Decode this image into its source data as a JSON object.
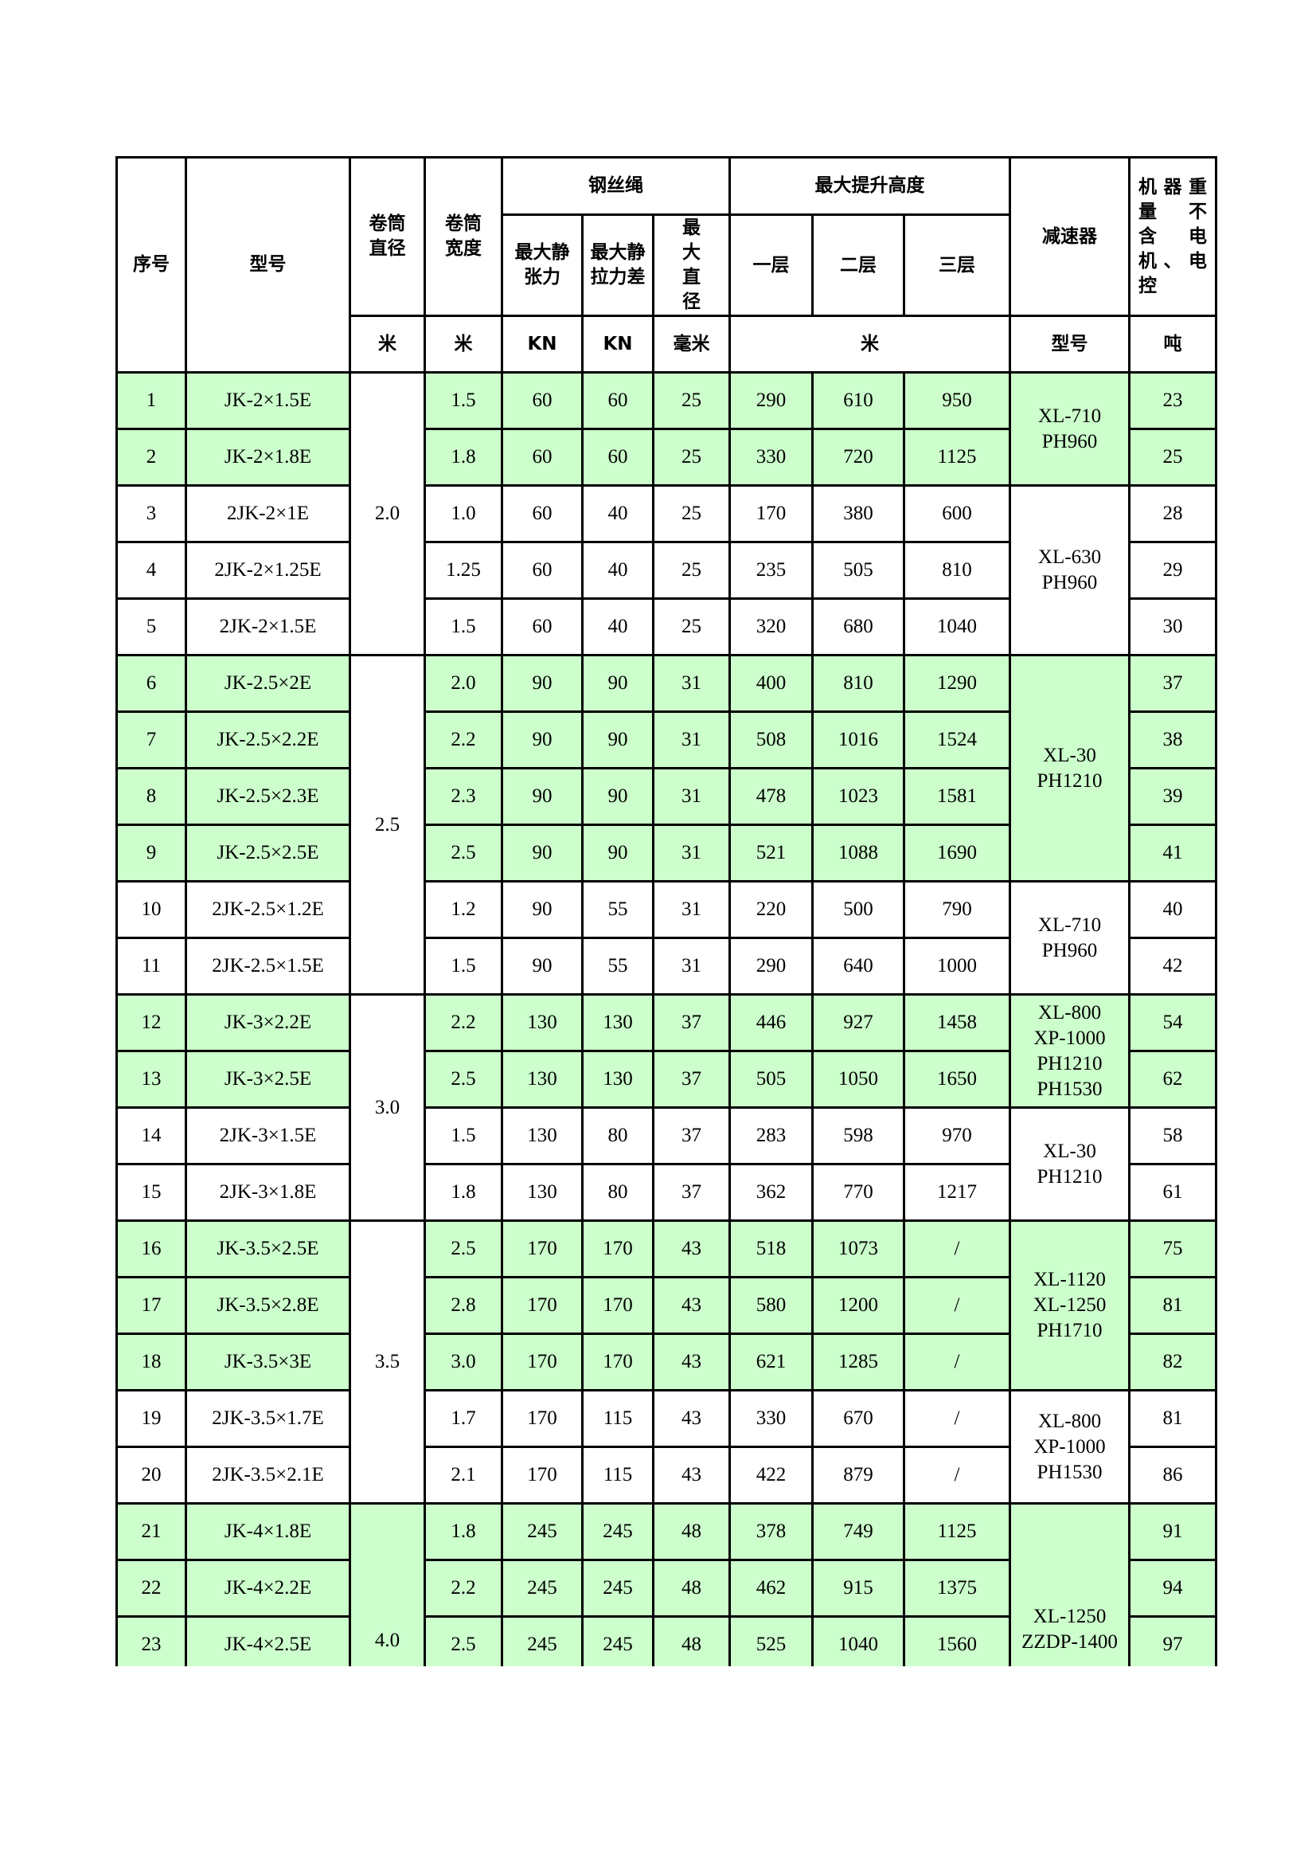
{
  "header": {
    "seq": "序号",
    "model": "型号",
    "drum_diameter": "卷筒直径",
    "drum_width": "卷筒宽度",
    "rope": "钢丝绳",
    "max_static_tension": "最大静张力",
    "max_static_tension_diff": "最大静拉力差",
    "max_diameter": "最大直径",
    "max_lift_height": "最大提升高度",
    "layer1": "一层",
    "layer2": "二层",
    "layer3": "三层",
    "reducer": "减速器",
    "weight": "机器重量　不含电机、电控"
  },
  "units": {
    "drum_diameter": "米",
    "drum_width": "米",
    "tension": "KN",
    "tension_diff": "KN",
    "diameter": "毫米",
    "lift": "米",
    "reducer": "型号",
    "weight": "吨"
  },
  "colors": {
    "green": "#ccffcc",
    "white": "#ffffff"
  },
  "rows": [
    {
      "no": "1",
      "model": "JK-2×1.5E",
      "width": "1.5",
      "tension": "60",
      "diff": "60",
      "dia": "25",
      "l1": "290",
      "l2": "610",
      "l3": "950",
      "weight": "23",
      "green": true
    },
    {
      "no": "2",
      "model": "JK-2×1.8E",
      "width": "1.8",
      "tension": "60",
      "diff": "60",
      "dia": "25",
      "l1": "330",
      "l2": "720",
      "l3": "1125",
      "weight": "25",
      "green": true
    },
    {
      "no": "3",
      "model": "2JK-2×1E",
      "width": "1.0",
      "tension": "60",
      "diff": "40",
      "dia": "25",
      "l1": "170",
      "l2": "380",
      "l3": "600",
      "weight": "28",
      "green": false
    },
    {
      "no": "4",
      "model": "2JK-2×1.25E",
      "width": "1.25",
      "tension": "60",
      "diff": "40",
      "dia": "25",
      "l1": "235",
      "l2": "505",
      "l3": "810",
      "weight": "29",
      "green": false
    },
    {
      "no": "5",
      "model": "2JK-2×1.5E",
      "width": "1.5",
      "tension": "60",
      "diff": "40",
      "dia": "25",
      "l1": "320",
      "l2": "680",
      "l3": "1040",
      "weight": "30",
      "green": false
    },
    {
      "no": "6",
      "model": "JK-2.5×2E",
      "width": "2.0",
      "tension": "90",
      "diff": "90",
      "dia": "31",
      "l1": "400",
      "l2": "810",
      "l3": "1290",
      "weight": "37",
      "green": true
    },
    {
      "no": "7",
      "model": "JK-2.5×2.2E",
      "width": "2.2",
      "tension": "90",
      "diff": "90",
      "dia": "31",
      "l1": "508",
      "l2": "1016",
      "l3": "1524",
      "weight": "38",
      "green": true
    },
    {
      "no": "8",
      "model": "JK-2.5×2.3E",
      "width": "2.3",
      "tension": "90",
      "diff": "90",
      "dia": "31",
      "l1": "478",
      "l2": "1023",
      "l3": "1581",
      "weight": "39",
      "green": true
    },
    {
      "no": "9",
      "model": "JK-2.5×2.5E",
      "width": "2.5",
      "tension": "90",
      "diff": "90",
      "dia": "31",
      "l1": "521",
      "l2": "1088",
      "l3": "1690",
      "weight": "41",
      "green": true
    },
    {
      "no": "10",
      "model": "2JK-2.5×1.2E",
      "width": "1.2",
      "tension": "90",
      "diff": "55",
      "dia": "31",
      "l1": "220",
      "l2": "500",
      "l3": "790",
      "weight": "40",
      "green": false
    },
    {
      "no": "11",
      "model": "2JK-2.5×1.5E",
      "width": "1.5",
      "tension": "90",
      "diff": "55",
      "dia": "31",
      "l1": "290",
      "l2": "640",
      "l3": "1000",
      "weight": "42",
      "green": false
    },
    {
      "no": "12",
      "model": "JK-3×2.2E",
      "width": "2.2",
      "tension": "130",
      "diff": "130",
      "dia": "37",
      "l1": "446",
      "l2": "927",
      "l3": "1458",
      "weight": "54",
      "green": true
    },
    {
      "no": "13",
      "model": "JK-3×2.5E",
      "width": "2.5",
      "tension": "130",
      "diff": "130",
      "dia": "37",
      "l1": "505",
      "l2": "1050",
      "l3": "1650",
      "weight": "62",
      "green": true
    },
    {
      "no": "14",
      "model": "2JK-3×1.5E",
      "width": "1.5",
      "tension": "130",
      "diff": "80",
      "dia": "37",
      "l1": "283",
      "l2": "598",
      "l3": "970",
      "weight": "58",
      "green": false
    },
    {
      "no": "15",
      "model": "2JK-3×1.8E",
      "width": "1.8",
      "tension": "130",
      "diff": "80",
      "dia": "37",
      "l1": "362",
      "l2": "770",
      "l3": "1217",
      "weight": "61",
      "green": false
    },
    {
      "no": "16",
      "model": "JK-3.5×2.5E",
      "width": "2.5",
      "tension": "170",
      "diff": "170",
      "dia": "43",
      "l1": "518",
      "l2": "1073",
      "l3": "/",
      "weight": "75",
      "green": true
    },
    {
      "no": "17",
      "model": "JK-3.5×2.8E",
      "width": "2.8",
      "tension": "170",
      "diff": "170",
      "dia": "43",
      "l1": "580",
      "l2": "1200",
      "l3": "/",
      "weight": "81",
      "green": true
    },
    {
      "no": "18",
      "model": "JK-3.5×3E",
      "width": "3.0",
      "tension": "170",
      "diff": "170",
      "dia": "43",
      "l1": "621",
      "l2": "1285",
      "l3": "/",
      "weight": "82",
      "green": true
    },
    {
      "no": "19",
      "model": "2JK-3.5×1.7E",
      "width": "1.7",
      "tension": "170",
      "diff": "115",
      "dia": "43",
      "l1": "330",
      "l2": "670",
      "l3": "/",
      "weight": "81",
      "green": false
    },
    {
      "no": "20",
      "model": "2JK-3.5×2.1E",
      "width": "2.1",
      "tension": "170",
      "diff": "115",
      "dia": "43",
      "l1": "422",
      "l2": "879",
      "l3": "/",
      "weight": "86",
      "green": false
    },
    {
      "no": "21",
      "model": "JK-4×1.8E",
      "width": "1.8",
      "tension": "245",
      "diff": "245",
      "dia": "48",
      "l1": "378",
      "l2": "749",
      "l3": "1125",
      "weight": "91",
      "green": true
    },
    {
      "no": "22",
      "model": "JK-4×2.2E",
      "width": "2.2",
      "tension": "245",
      "diff": "245",
      "dia": "48",
      "l1": "462",
      "l2": "915",
      "l3": "1375",
      "weight": "94",
      "green": true
    },
    {
      "no": "23",
      "model": "JK-4×2.5E",
      "width": "2.5",
      "tension": "245",
      "diff": "245",
      "dia": "48",
      "l1": "525",
      "l2": "1040",
      "l3": "1560",
      "weight": "97",
      "green": true
    }
  ],
  "diameter_groups": [
    {
      "value": "2.0",
      "start": 0,
      "span": 5,
      "green": false
    },
    {
      "value": "2.5",
      "start": 5,
      "span": 6,
      "green": false
    },
    {
      "value": "3.0",
      "start": 11,
      "span": 4,
      "green": false
    },
    {
      "value": "3.5",
      "start": 15,
      "span": 5,
      "green": false
    },
    {
      "value": "4.0",
      "start": 20,
      "span": 3,
      "green": true,
      "cut": true
    }
  ],
  "reducer_groups": [
    {
      "value": "XL-710\nPH960",
      "start": 0,
      "span": 2,
      "green": true
    },
    {
      "value": "XL-630\nPH960",
      "start": 2,
      "span": 3,
      "green": false
    },
    {
      "value": "XL-30\nPH1210",
      "start": 5,
      "span": 4,
      "green": true
    },
    {
      "value": "XL-710\nPH960",
      "start": 9,
      "span": 2,
      "green": false
    },
    {
      "value": "XL-800\nXP-1000\nPH1210\nPH1530",
      "start": 11,
      "span": 2,
      "green": true
    },
    {
      "value": "XL-30\nPH1210",
      "start": 13,
      "span": 2,
      "green": false
    },
    {
      "value": "XL-1120\nXL-1250\nPH1710",
      "start": 15,
      "span": 3,
      "green": true
    },
    {
      "value": "XL-800\nXP-1000\nPH1530",
      "start": 18,
      "span": 2,
      "green": false
    },
    {
      "value": "XL-1250\nZZDP-1400",
      "start": 20,
      "span": 3,
      "green": true,
      "cut": true
    }
  ]
}
